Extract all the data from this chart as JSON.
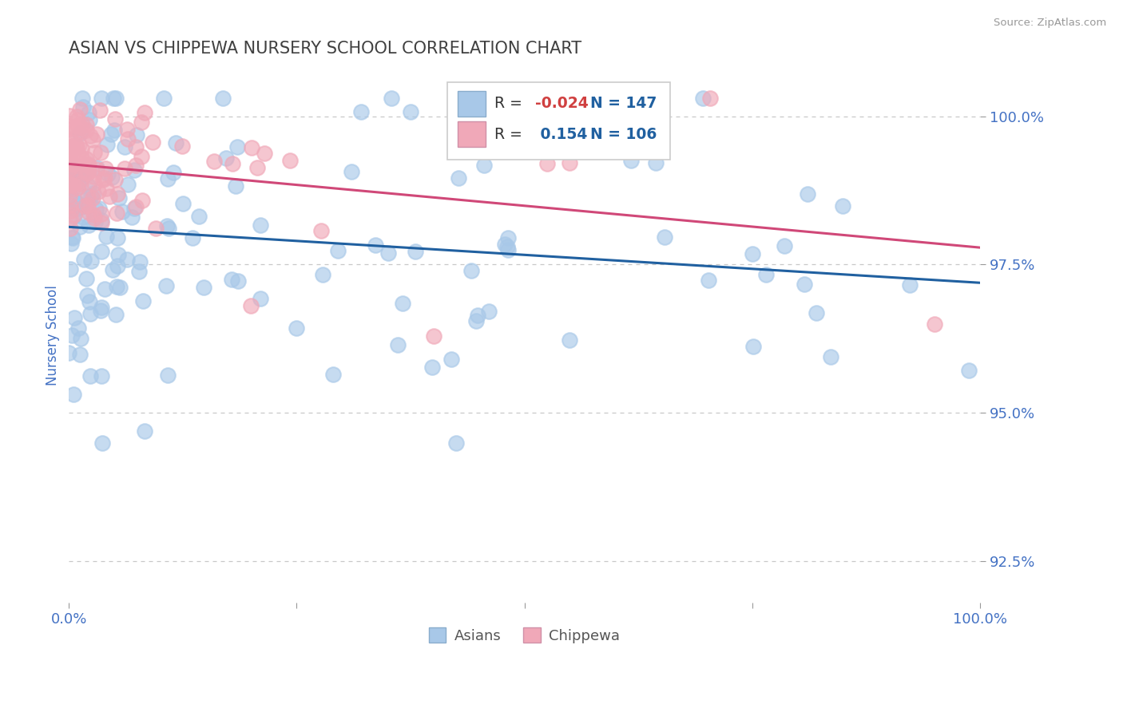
{
  "title": "ASIAN VS CHIPPEWA NURSERY SCHOOL CORRELATION CHART",
  "source": "Source: ZipAtlas.com",
  "ylabel": "Nursery School",
  "xlim": [
    0.0,
    100.0
  ],
  "ylim": [
    91.8,
    100.8
  ],
  "yticks": [
    92.5,
    95.0,
    97.5,
    100.0
  ],
  "ytick_labels": [
    "92.5%",
    "95.0%",
    "97.5%",
    "100.0%"
  ],
  "asian_R": -0.024,
  "asian_N": 147,
  "chippewa_R": 0.154,
  "chippewa_N": 106,
  "blue_color": "#a8c8e8",
  "pink_color": "#f0a8b8",
  "blue_line_color": "#2060a0",
  "pink_line_color": "#d04878",
  "title_color": "#404040",
  "axis_label_color": "#4472c4",
  "tick_label_color": "#4472c4",
  "grid_color": "#c8c8c8",
  "background_color": "#ffffff",
  "legend_text_color": "#2060a0",
  "legend_R_color_asian": "#d04040",
  "legend_R_color_chippewa": "#2060a0"
}
